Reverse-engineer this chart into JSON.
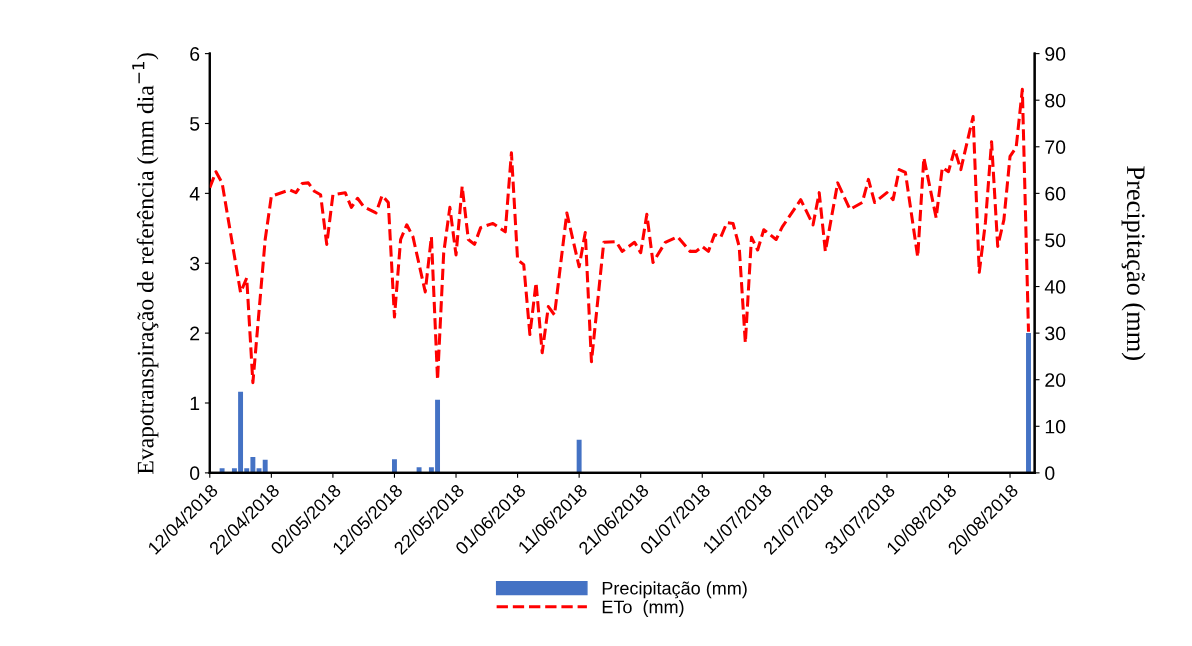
{
  "chart_data": {
    "type": "line",
    "ylabel": "Evapotranspiração de referência (mm dia$^{−1}$)",
    "y2label": "Precipitação (mm)",
    "xlim": [
      "2018-04-12",
      "2018-08-24"
    ],
    "ylim": [
      0,
      6
    ],
    "yticks": [
      0,
      1,
      2,
      3,
      4,
      5,
      6
    ],
    "y2lim": [
      0,
      90
    ],
    "y2ticks": [
      0,
      10,
      20,
      30,
      40,
      50,
      60,
      70,
      80,
      90
    ],
    "xticks": [
      {
        "value": "2018-04-12",
        "label": "12/04/2018"
      },
      {
        "value": "2018-04-22",
        "label": "22/04/2018"
      },
      {
        "value": "2018-05-02",
        "label": "02/05/2018"
      },
      {
        "value": "2018-05-12",
        "label": "12/05/2018"
      },
      {
        "value": "2018-05-22",
        "label": "22/05/2018"
      },
      {
        "value": "2018-06-01",
        "label": "01/06/2018"
      },
      {
        "value": "2018-06-11",
        "label": "11/06/2018"
      },
      {
        "value": "2018-06-21",
        "label": "21/06/2018"
      },
      {
        "value": "2018-07-01",
        "label": "01/07/2018"
      },
      {
        "value": "2018-07-11",
        "label": "11/07/2018"
      },
      {
        "value": "2018-07-21",
        "label": "21/07/2018"
      },
      {
        "value": "2018-07-31",
        "label": "31/07/2018"
      },
      {
        "value": "2018-08-10",
        "label": "10/08/2018"
      },
      {
        "value": "2018-08-20",
        "label": "20/08/2018"
      }
    ],
    "legend": "bottom",
    "grid": false,
    "series": [
      {
        "name": "Precipitação (mm)",
        "type": "bar",
        "axis": "y2",
        "color": "#4472c4",
        "x": [
          "2018-04-14",
          "2018-04-16",
          "2018-04-17",
          "2018-04-18",
          "2018-04-19",
          "2018-04-20",
          "2018-04-21",
          "2018-05-12",
          "2018-05-16",
          "2018-05-18",
          "2018-05-19",
          "2018-06-11",
          "2018-08-23"
        ],
        "values": [
          1,
          1,
          17.4,
          1,
          3.4,
          1,
          2.8,
          2.9,
          1.2,
          1.2,
          15.7,
          7.1,
          30
        ]
      },
      {
        "name": "ETo  (mm)",
        "axis": "y",
        "color": "#ff0000",
        "line_style": "dashed",
        "x": [
          "2018-04-12",
          "2018-04-13",
          "2018-04-14",
          "2018-04-17",
          "2018-04-18",
          "2018-04-19",
          "2018-04-21",
          "2018-04-22",
          "2018-04-25",
          "2018-04-26",
          "2018-04-27",
          "2018-04-28",
          "2018-04-29",
          "2018-04-30",
          "2018-05-01",
          "2018-05-02",
          "2018-05-04",
          "2018-05-05",
          "2018-05-06",
          "2018-05-07",
          "2018-05-09",
          "2018-05-10",
          "2018-05-11",
          "2018-05-12",
          "2018-05-13",
          "2018-05-14",
          "2018-05-15",
          "2018-05-17",
          "2018-05-18",
          "2018-05-19",
          "2018-05-20",
          "2018-05-21",
          "2018-05-22",
          "2018-05-23",
          "2018-05-24",
          "2018-05-25",
          "2018-05-26",
          "2018-05-28",
          "2018-05-30",
          "2018-05-31",
          "2018-06-01",
          "2018-06-02",
          "2018-06-03",
          "2018-06-04",
          "2018-06-05",
          "2018-06-06",
          "2018-06-07",
          "2018-06-09",
          "2018-06-11",
          "2018-06-12",
          "2018-06-13",
          "2018-06-15",
          "2018-06-17",
          "2018-06-18",
          "2018-06-20",
          "2018-06-21",
          "2018-06-22",
          "2018-06-23",
          "2018-06-25",
          "2018-06-27",
          "2018-06-29",
          "2018-06-30",
          "2018-07-01",
          "2018-07-02",
          "2018-07-03",
          "2018-07-04",
          "2018-07-05",
          "2018-07-06",
          "2018-07-07",
          "2018-07-08",
          "2018-07-09",
          "2018-07-10",
          "2018-07-11",
          "2018-07-13",
          "2018-07-14",
          "2018-07-17",
          "2018-07-19",
          "2018-07-20",
          "2018-07-21",
          "2018-07-23",
          "2018-07-25",
          "2018-07-27",
          "2018-07-28",
          "2018-07-29",
          "2018-07-31",
          "2018-08-01",
          "2018-08-02",
          "2018-08-03",
          "2018-08-05",
          "2018-08-06",
          "2018-08-08",
          "2018-08-09",
          "2018-08-10",
          "2018-08-11",
          "2018-08-12",
          "2018-08-14",
          "2018-08-15",
          "2018-08-16",
          "2018-08-17",
          "2018-08-18",
          "2018-08-19",
          "2018-08-20",
          "2018-08-21",
          "2018-08-22",
          "2018-08-23"
        ],
        "values": [
          4.08,
          4.31,
          4.15,
          2.58,
          2.79,
          1.29,
          3.34,
          3.96,
          4.05,
          4.01,
          4.14,
          4.15,
          4.03,
          3.98,
          3.27,
          3.98,
          4.01,
          3.8,
          3.93,
          3.81,
          3.72,
          3.97,
          3.87,
          2.23,
          3.34,
          3.55,
          3.38,
          2.59,
          3.38,
          1.33,
          3.15,
          3.8,
          3.12,
          4.1,
          3.34,
          3.27,
          3.51,
          3.57,
          3.45,
          4.58,
          3.05,
          2.98,
          1.98,
          2.72,
          1.72,
          2.38,
          2.26,
          3.72,
          2.95,
          3.44,
          1.59,
          3.3,
          3.31,
          3.17,
          3.3,
          3.15,
          3.7,
          3.01,
          3.3,
          3.38,
          3.17,
          3.17,
          3.24,
          3.17,
          3.41,
          3.37,
          3.58,
          3.57,
          3.24,
          1.86,
          3.37,
          3.19,
          3.48,
          3.34,
          3.52,
          3.91,
          3.55,
          4.01,
          3.17,
          4.15,
          3.77,
          3.87,
          4.2,
          3.87,
          4.01,
          3.91,
          4.34,
          4.3,
          3.09,
          4.51,
          3.65,
          4.37,
          4.31,
          4.63,
          4.34,
          5.1,
          2.87,
          3.58,
          4.74,
          3.24,
          3.62,
          4.53,
          4.66,
          5.49,
          2.02
        ]
      }
    ]
  }
}
